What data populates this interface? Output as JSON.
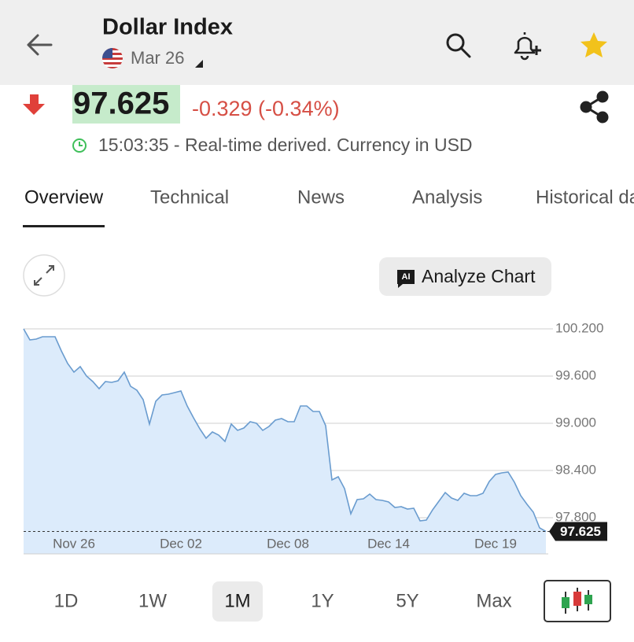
{
  "header": {
    "title": "Dollar Index",
    "date": "Mar 26"
  },
  "quote": {
    "price": "97.625",
    "change": "-0.329 (-0.34%)",
    "status": "15:03:35 - Real-time derived. Currency in USD"
  },
  "tabs": [
    "Overview",
    "Technical",
    "News",
    "Analysis",
    "Historical data"
  ],
  "toolbar": {
    "ai_badge": "AI",
    "analyze": "Analyze Chart"
  },
  "ranges": [
    "1D",
    "1W",
    "1M",
    "1Y",
    "5Y",
    "Max"
  ],
  "chart_data": {
    "type": "area",
    "color": "#6a9ccf",
    "fill": "#dcebfb",
    "grid": true,
    "categories": [
      null,
      null,
      null,
      null,
      null,
      null,
      null,
      null,
      "Nov 26",
      null,
      null,
      null,
      null,
      null,
      null,
      null,
      null,
      null,
      null,
      null,
      null,
      null,
      null,
      null,
      null,
      "Dec 02",
      null,
      null,
      null,
      null,
      null,
      null,
      null,
      null,
      null,
      null,
      null,
      null,
      null,
      null,
      null,
      null,
      "Dec 08",
      null,
      null,
      null,
      null,
      null,
      null,
      null,
      null,
      null,
      null,
      null,
      null,
      null,
      null,
      null,
      "Dec 14",
      null,
      null,
      null,
      null,
      null,
      null,
      null,
      null,
      null,
      null,
      null,
      null,
      null,
      null,
      null,
      null,
      "Dec 19",
      null,
      null,
      null,
      null,
      null,
      null,
      null,
      null
    ],
    "values": [
      100.2,
      100.06,
      100.07,
      100.1,
      100.1,
      100.1,
      99.92,
      99.76,
      99.65,
      99.72,
      99.6,
      99.53,
      99.44,
      99.53,
      99.52,
      99.54,
      99.65,
      99.47,
      99.42,
      99.3,
      98.99,
      99.28,
      99.36,
      99.37,
      99.39,
      99.41,
      99.22,
      99.07,
      98.93,
      98.81,
      98.89,
      98.85,
      98.77,
      98.99,
      98.91,
      98.94,
      99.02,
      99.0,
      98.91,
      98.96,
      99.04,
      99.06,
      99.02,
      99.02,
      99.22,
      99.22,
      99.15,
      99.15,
      98.97,
      98.28,
      98.32,
      98.17,
      97.85,
      98.03,
      98.04,
      98.1,
      98.03,
      98.02,
      98.0,
      97.93,
      97.94,
      97.91,
      97.92,
      97.76,
      97.77,
      97.9,
      98.01,
      98.12,
      98.05,
      98.02,
      98.11,
      98.08,
      98.08,
      98.11,
      98.26,
      98.35,
      98.37,
      98.38,
      98.25,
      98.08,
      97.97,
      97.87,
      97.67,
      97.625
    ],
    "ylim": [
      97.34,
      100.2
    ],
    "yticks": [
      {
        "value": 100.2,
        "label": "100.200"
      },
      {
        "value": 99.6,
        "label": "99.600"
      },
      {
        "value": 99,
        "label": "99.000"
      },
      {
        "value": 98.4,
        "label": "98.400"
      },
      {
        "value": 97.8,
        "label": "97.800"
      }
    ]
  }
}
